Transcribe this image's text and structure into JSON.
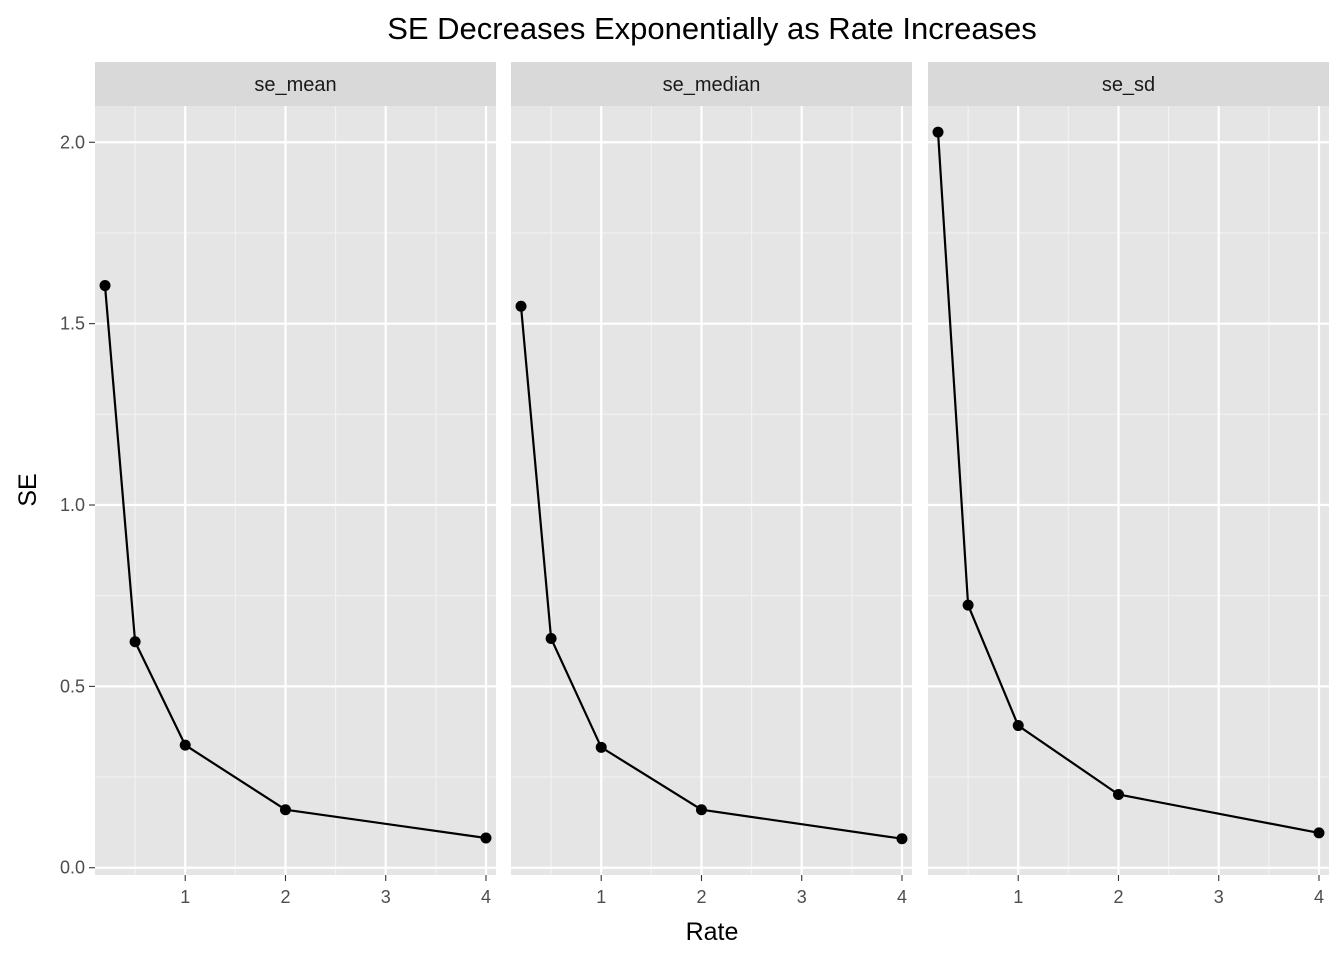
{
  "chart_data": {
    "type": "line",
    "title": "SE Decreases Exponentially as Rate Increases",
    "xlabel": "Rate",
    "ylabel": "SE",
    "xlim": [
      0.1,
      4.1
    ],
    "ylim": [
      -0.02,
      2.1
    ],
    "x_ticks": [
      1,
      2,
      3,
      4
    ],
    "y_ticks": [
      0.0,
      0.5,
      1.0,
      1.5,
      2.0
    ],
    "x_tick_labels": [
      "1",
      "2",
      "3",
      "4"
    ],
    "y_tick_labels": [
      "0.0",
      "0.5",
      "1.0",
      "1.5",
      "2.0"
    ],
    "x_minor_ticks": [
      0.5,
      1.5,
      2.5,
      3.5
    ],
    "y_minor_ticks": [
      0.25,
      0.75,
      1.25,
      1.75
    ],
    "grid": true,
    "legend": "none",
    "colors": {
      "line": "#000000",
      "panel": "#e5e5e5",
      "strip": "#d9d9d9",
      "grid": "#ffffff"
    },
    "facets": [
      {
        "label": "se_mean",
        "x": [
          0.2,
          0.5,
          1,
          2,
          4
        ],
        "values": [
          1.605,
          0.623,
          0.338,
          0.16,
          0.082
        ]
      },
      {
        "label": "se_median",
        "x": [
          0.2,
          0.5,
          1,
          2,
          4
        ],
        "values": [
          1.548,
          0.632,
          0.332,
          0.16,
          0.08
        ]
      },
      {
        "label": "se_sd",
        "x": [
          0.2,
          0.5,
          1,
          2,
          4
        ],
        "values": [
          2.028,
          0.724,
          0.392,
          0.202,
          0.096
        ]
      }
    ]
  }
}
